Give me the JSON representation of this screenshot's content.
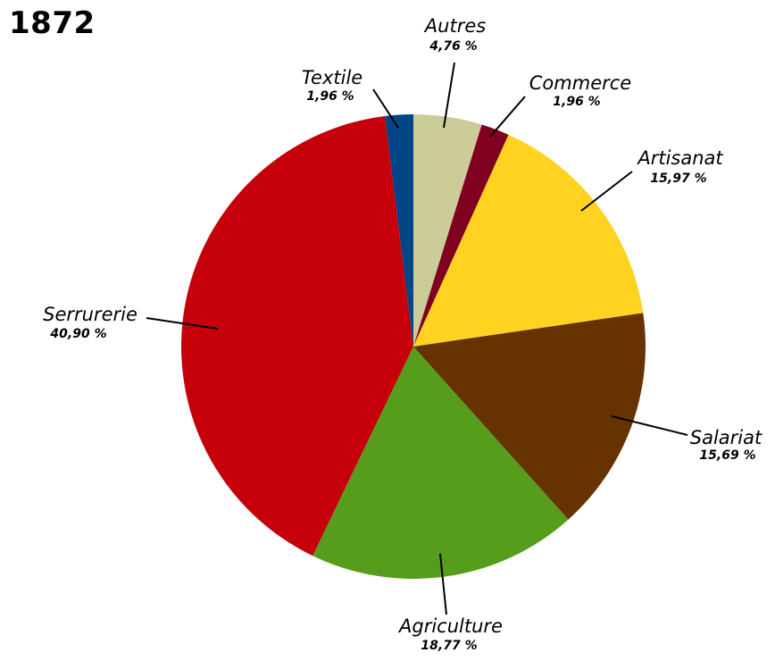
{
  "chart_data": {
    "type": "pie",
    "title": "1872",
    "start_angle_deg": 0,
    "direction": "clockwise",
    "slices": [
      {
        "label": "Autres",
        "value": 4.76,
        "value_label": "4,76 %",
        "color": "#cccc99"
      },
      {
        "label": "Commerce",
        "value": 1.96,
        "value_label": "1,96 %",
        "color": "#800020"
      },
      {
        "label": "Artisanat",
        "value": 15.97,
        "value_label": "15,97 %",
        "color": "#ffd320"
      },
      {
        "label": "Salariat",
        "value": 15.69,
        "value_label": "15,69 %",
        "color": "#663300"
      },
      {
        "label": "Agriculture",
        "value": 18.77,
        "value_label": "18,77 %",
        "color": "#579d1c"
      },
      {
        "label": "Serrurerie",
        "value": 40.9,
        "value_label": "40,90 %",
        "color": "#c5000b"
      },
      {
        "label": "Textile",
        "value": 1.96,
        "value_label": "1,96 %",
        "color": "#004586"
      }
    ],
    "legend": "none"
  }
}
